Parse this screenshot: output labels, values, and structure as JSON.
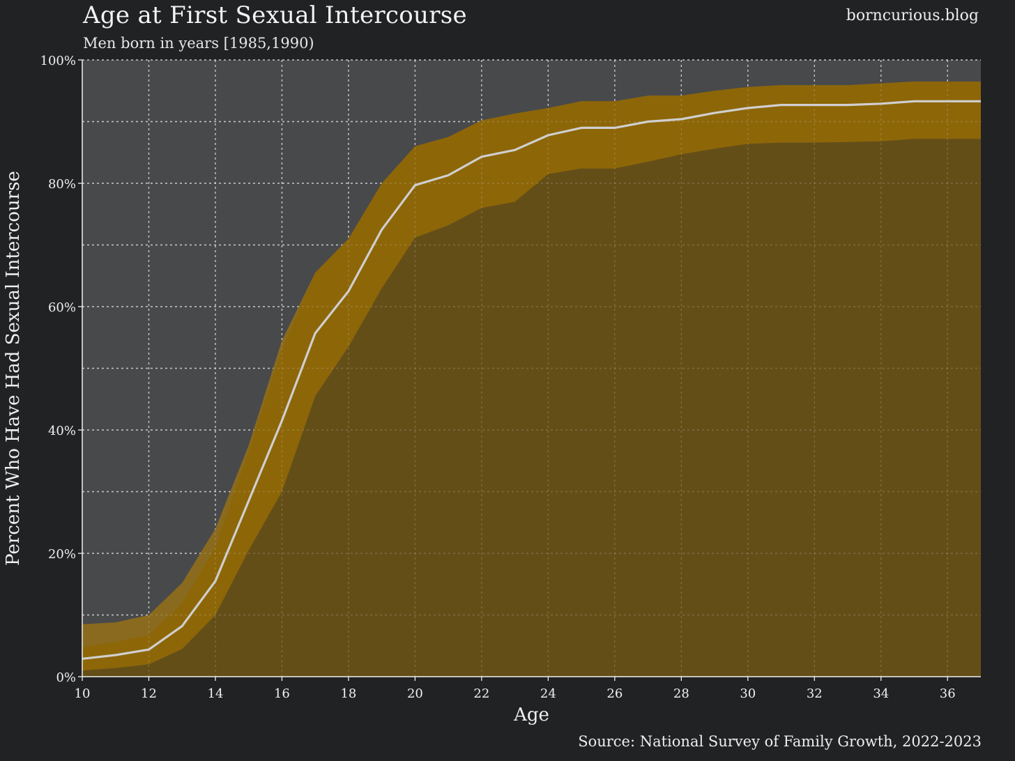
{
  "header": {
    "title": "Age at First Sexual Intercourse",
    "subtitle": "Men born in years [1985,1990)",
    "site": "borncurious.blog"
  },
  "footer": {
    "source": "Source: National Survey of Family Growth, 2022-2023"
  },
  "colors": {
    "background": "#212224",
    "plot_background": "#48494b",
    "outer_band": "#8a6a1e",
    "inner_band": "#8d6608",
    "below_band": "#644e18",
    "line": "#cfcfcf",
    "grid": "#d8d8d8"
  },
  "chart_data": {
    "type": "area",
    "xlabel": "Age",
    "ylabel": "Percent Who Have Had Sexual Intercourse",
    "xlim": [
      10,
      37
    ],
    "ylim": [
      0,
      100
    ],
    "x_ticks": [
      10,
      12,
      14,
      16,
      18,
      20,
      22,
      24,
      26,
      28,
      30,
      32,
      34,
      36
    ],
    "x_tick_labels": [
      "10",
      "12",
      "14",
      "16",
      "18",
      "20",
      "22",
      "24",
      "26",
      "28",
      "30",
      "32",
      "34",
      "36"
    ],
    "y_ticks": [
      0,
      20,
      40,
      60,
      80,
      100
    ],
    "y_tick_labels": [
      "0%",
      "20%",
      "40%",
      "60%",
      "80%",
      "100%"
    ],
    "grid": true,
    "x": [
      10,
      11,
      12,
      13,
      14,
      15,
      16,
      17,
      18,
      19,
      20,
      21,
      22,
      23,
      24,
      25,
      26,
      27,
      28,
      29,
      30,
      31,
      32,
      33,
      34,
      35,
      36,
      37
    ],
    "series": [
      {
        "role": "estimate",
        "values": [
          2.9,
          3.5,
          4.4,
          8.2,
          15.5,
          28.5,
          41.5,
          55.7,
          62.5,
          72.5,
          79.7,
          81.3,
          84.3,
          85.4,
          87.8,
          89.0,
          89.0,
          90.0,
          90.4,
          91.4,
          92.2,
          92.7,
          92.7,
          92.7,
          92.9,
          93.3,
          93.3,
          93.3
        ]
      },
      {
        "role": "inner_lower",
        "values": [
          1.0,
          1.4,
          2.0,
          4.5,
          10.0,
          20.5,
          30.0,
          45.5,
          53.5,
          63.0,
          71.2,
          73.2,
          76.0,
          77.0,
          81.5,
          82.4,
          82.4,
          83.5,
          84.7,
          85.6,
          86.4,
          86.6,
          86.6,
          86.7,
          86.8,
          87.2,
          87.2,
          87.2
        ]
      },
      {
        "role": "outer_upper",
        "values": [
          8.5,
          8.8,
          10.0,
          15.2,
          24.0,
          37.5,
          54.5,
          65.5,
          71.0,
          80.0,
          86.0,
          87.5,
          90.2,
          91.3,
          92.2,
          93.3,
          93.3,
          94.2,
          94.2,
          95.0,
          95.6,
          95.9,
          95.9,
          95.9,
          96.2,
          96.5,
          96.5,
          96.5
        ]
      }
    ]
  }
}
